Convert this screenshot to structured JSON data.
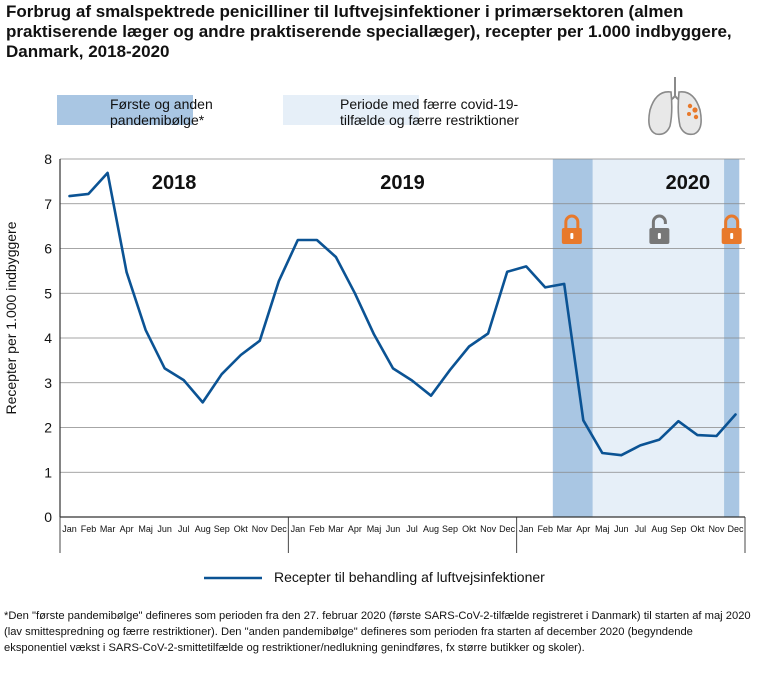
{
  "title": "Forbrug af smalspektrede penicilliner til luftvejsinfektioner i primærsektoren (almen praktiserende læger og andre praktiserende speciallæger), recepter per 1.000 indbyggere, Danmark, 2018-2020",
  "legend_top": {
    "wave": {
      "label": "Første og anden\npandemibølge*",
      "color": "#a9c6e3"
    },
    "fewer": {
      "label": "Periode med færre covid-19-\ntilfælde og færre restriktioner",
      "color": "#e6eff8"
    }
  },
  "icons": {
    "lungs": "lungs-icon",
    "lock_closed": "lock-closed-icon",
    "lock_open": "lock-open-icon"
  },
  "colors": {
    "line": "#0b5394",
    "lock_closed": "#e8792b",
    "lock_open": "#777777",
    "grid": "#888888"
  },
  "footnote": "*Den \"første pandemibølge\" defineres som perioden fra den 27. februar 2020 (første SARS-CoV-2-tilfælde registreret i Danmark) til starten af maj 2020 (lav smittespredning og færre restriktioner). Den \"anden pandemibølge\" defineres som perioden fra starten af december 2020 (begyndende eksponentiel vækst i SARS-CoV-2-smittetilfælde og restriktioner/nedlukning genindføres, fx større butikker og skoler).",
  "chart_data": {
    "type": "line",
    "years": [
      "2018",
      "2019",
      "2020"
    ],
    "months": [
      "Jan",
      "Feb",
      "Mar",
      "Apr",
      "Maj",
      "Jun",
      "Jul",
      "Aug",
      "Sep",
      "Okt",
      "Nov",
      "Dec",
      "Jan",
      "Feb",
      "Mar",
      "Apr",
      "Maj",
      "Jun",
      "Jul",
      "Aug",
      "Sep",
      "Okt",
      "Nov",
      "Dec",
      "Jan",
      "Feb",
      "Mar",
      "Apr",
      "Maj",
      "Jun",
      "Jul",
      "Aug",
      "Sep",
      "Okt",
      "Nov",
      "Dec"
    ],
    "ylabel": "Recepter per 1.000 indbyggere",
    "ylim": [
      0,
      8
    ],
    "yticks": [
      0,
      1,
      2,
      3,
      4,
      5,
      6,
      7,
      8
    ],
    "grid": true,
    "series": [
      {
        "name": "Recepter til behandling af luftvejsinfektioner",
        "values": [
          7.17,
          7.22,
          7.69,
          5.47,
          4.18,
          3.32,
          3.06,
          2.56,
          3.19,
          3.62,
          3.94,
          5.27,
          6.19,
          6.19,
          5.81,
          5.0,
          4.08,
          3.32,
          3.05,
          2.71,
          3.29,
          3.81,
          4.1,
          5.48,
          5.6,
          5.13,
          5.21,
          2.16,
          1.43,
          1.38,
          1.6,
          1.73,
          2.14,
          1.83,
          1.81,
          2.29
        ]
      }
    ],
    "shaded_periods": [
      {
        "kind": "wave",
        "start_month_index": 25.9,
        "end_month_index": 28.0
      },
      {
        "kind": "fewer",
        "start_month_index": 28.0,
        "end_month_index": 34.9
      },
      {
        "kind": "wave",
        "start_month_index": 34.9,
        "end_month_index": 35.7
      }
    ],
    "locks": [
      {
        "state": "closed",
        "month_index": 26.9
      },
      {
        "state": "open",
        "month_index": 31.5
      },
      {
        "state": "closed",
        "month_index": 35.3
      }
    ],
    "legend_placement": "bottom"
  }
}
